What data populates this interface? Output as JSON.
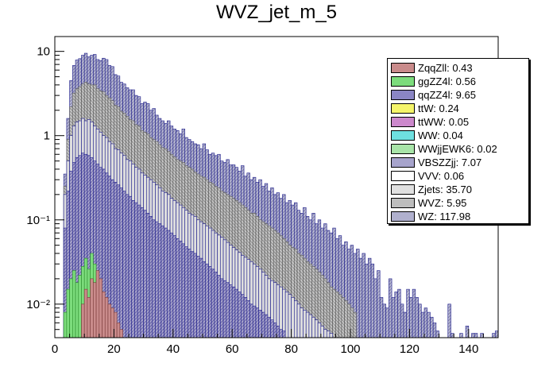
{
  "chart_data": {
    "type": "bar",
    "title": "WVZ_jet_m_5",
    "xlabel": "",
    "ylabel": "",
    "xlim": [
      0,
      150
    ],
    "ylim": [
      0.004,
      15
    ],
    "yscale": "log",
    "stacked": true,
    "bin_width": 1,
    "x_ticks": [
      "0",
      "20",
      "40",
      "60",
      "80",
      "100",
      "120",
      "140"
    ],
    "y_ticks": [
      {
        "value": 10,
        "label": "10"
      },
      {
        "value": 1,
        "label": "1"
      },
      {
        "value": 0.1,
        "label": "10⁻¹"
      },
      {
        "value": 0.01,
        "label": "10⁻²"
      }
    ],
    "legend_position": "top-right",
    "legend": [
      {
        "label": "ZqqZll: 0.43",
        "color": "#c98b8b"
      },
      {
        "label": "ggZZ4l: 0.56",
        "color": "#7cdc7c"
      },
      {
        "label": "qqZZ4l: 9.65",
        "color": "#8a85c4"
      },
      {
        "label": "ttW: 0.24",
        "color": "#f5f56a"
      },
      {
        "label": "ttWW: 0.05",
        "color": "#cc88cc"
      },
      {
        "label": "WW: 0.04",
        "color": "#6ee0e0"
      },
      {
        "label": "WWjjEWK6: 0.02",
        "color": "#a8e4a8"
      },
      {
        "label": "VBSZZjj: 7.07",
        "color": "#a7a4cc"
      },
      {
        "label": "VVV: 0.06",
        "color": "#ffffff"
      },
      {
        "label": "Zjets: 35.70",
        "color": "#e0e0e0"
      },
      {
        "label": "WVZ: 5.95",
        "color": "#bdbdbd"
      },
      {
        "label": "WZ: 117.98",
        "color": "#b0b0ce"
      }
    ],
    "series": [
      {
        "name": "WZ (stack total)",
        "x_start": 0,
        "values": [
          0,
          0,
          0,
          0.35,
          1.6,
          4.5,
          6.8,
          7.9,
          8.2,
          9.0,
          9.5,
          8.6,
          9.0,
          9.2,
          8.0,
          7.8,
          8.3,
          8.0,
          6.8,
          6.6,
          5.3,
          5.1,
          4.3,
          4.1,
          3.7,
          3.5,
          3.5,
          3.0,
          2.9,
          2.4,
          2.5,
          2.4,
          2.0,
          2.1,
          1.75,
          1.6,
          1.5,
          1.4,
          1.5,
          1.3,
          1.2,
          1.15,
          1.05,
          1.2,
          0.95,
          0.9,
          0.85,
          0.8,
          0.78,
          0.7,
          0.8,
          0.68,
          0.6,
          0.62,
          0.58,
          0.6,
          0.5,
          0.48,
          0.52,
          0.45,
          0.45,
          0.42,
          0.38,
          0.44,
          0.33,
          0.36,
          0.3,
          0.32,
          0.28,
          0.3,
          0.25,
          0.27,
          0.22,
          0.24,
          0.2,
          0.21,
          0.18,
          0.2,
          0.16,
          0.17,
          0.15,
          0.16,
          0.13,
          0.12,
          0.14,
          0.11,
          0.1,
          0.12,
          0.09,
          0.1,
          0.08,
          0.09,
          0.075,
          0.07,
          0.08,
          0.06,
          0.065,
          0.05,
          0.055,
          0.045,
          0.05,
          0.04,
          0.045,
          0.035,
          0.04,
          0.03,
          0.035,
          0.03,
          0.02,
          0.025,
          0.012,
          0.01,
          0.009,
          0.02,
          0.012,
          0.014,
          0.015,
          0.01,
          0.008,
          0.015,
          0.012,
          0.015,
          0.012,
          0.01,
          0.008,
          0.009,
          0.008,
          0.007,
          0.006,
          0.0048,
          0,
          0,
          0,
          0.01,
          0.0045,
          0,
          0,
          0.0045,
          0,
          0.0055,
          0,
          0.0045,
          0.0045,
          0,
          0.0045,
          0,
          0,
          0,
          0.0045,
          0.0048
        ]
      },
      {
        "name": "WVZ (cumulative)",
        "x_start": 0,
        "values": [
          0,
          0,
          0,
          0.25,
          0.9,
          2.2,
          3.2,
          3.6,
          3.8,
          4.1,
          4.3,
          4.1,
          4.0,
          4.0,
          3.6,
          3.4,
          3.3,
          3.0,
          2.8,
          2.6,
          2.3,
          2.2,
          1.95,
          1.85,
          1.7,
          1.55,
          1.5,
          1.35,
          1.3,
          1.15,
          1.1,
          1.05,
          0.95,
          0.9,
          0.85,
          0.78,
          0.72,
          0.7,
          0.65,
          0.6,
          0.56,
          0.52,
          0.5,
          0.48,
          0.44,
          0.42,
          0.4,
          0.37,
          0.35,
          0.33,
          0.32,
          0.3,
          0.28,
          0.27,
          0.25,
          0.24,
          0.22,
          0.21,
          0.2,
          0.19,
          0.18,
          0.17,
          0.16,
          0.15,
          0.14,
          0.13,
          0.12,
          0.12,
          0.11,
          0.1,
          0.095,
          0.09,
          0.085,
          0.08,
          0.075,
          0.07,
          0.065,
          0.06,
          0.055,
          0.05,
          0.047,
          0.045,
          0.04,
          0.038,
          0.035,
          0.032,
          0.03,
          0.028,
          0.026,
          0.024,
          0.022,
          0.02,
          0.018,
          0.016,
          0.015,
          0.014,
          0.013,
          0.012,
          0.011,
          0.01,
          0.009,
          0.008
        ]
      },
      {
        "name": "Zjets (cumulative)",
        "x_start": 0,
        "values": [
          0,
          0,
          0,
          0.2,
          0.5,
          1.0,
          1.3,
          1.45,
          1.5,
          1.6,
          1.5,
          1.55,
          1.45,
          1.3,
          1.2,
          1.1,
          1.0,
          0.95,
          0.85,
          0.8,
          0.7,
          0.68,
          0.62,
          0.58,
          0.52,
          0.5,
          0.46,
          0.42,
          0.4,
          0.36,
          0.34,
          0.32,
          0.3,
          0.28,
          0.26,
          0.24,
          0.22,
          0.21,
          0.2,
          0.18,
          0.17,
          0.16,
          0.15,
          0.14,
          0.13,
          0.12,
          0.115,
          0.11,
          0.1,
          0.095,
          0.09,
          0.085,
          0.08,
          0.075,
          0.07,
          0.066,
          0.062,
          0.058,
          0.054,
          0.05,
          0.047,
          0.044,
          0.041,
          0.038,
          0.036,
          0.034,
          0.032,
          0.03,
          0.028,
          0.026,
          0.024,
          0.022,
          0.02,
          0.019,
          0.018,
          0.017,
          0.016,
          0.015,
          0.014,
          0.013,
          0.012,
          0.011,
          0.01,
          0.009,
          0.0085,
          0.008,
          0.0075,
          0.007,
          0.0065,
          0.006,
          0.0055,
          0.005,
          0.0048,
          0.0045
        ]
      },
      {
        "name": "qqZZ4l (cumulative)",
        "x_start": 0,
        "values": [
          0,
          0,
          0,
          0.08,
          0.22,
          0.38,
          0.48,
          0.55,
          0.58,
          0.62,
          0.6,
          0.58,
          0.55,
          0.5,
          0.46,
          0.42,
          0.4,
          0.36,
          0.33,
          0.3,
          0.28,
          0.26,
          0.24,
          0.22,
          0.2,
          0.19,
          0.17,
          0.16,
          0.15,
          0.14,
          0.13,
          0.12,
          0.11,
          0.1,
          0.095,
          0.09,
          0.085,
          0.08,
          0.075,
          0.07,
          0.065,
          0.06,
          0.056,
          0.052,
          0.048,
          0.045,
          0.042,
          0.04,
          0.037,
          0.035,
          0.032,
          0.03,
          0.028,
          0.026,
          0.024,
          0.022,
          0.02,
          0.019,
          0.018,
          0.017,
          0.016,
          0.015,
          0.014,
          0.013,
          0.012,
          0.011,
          0.01,
          0.0095,
          0.009,
          0.0085,
          0.008,
          0.0075,
          0.007,
          0.0065,
          0.006,
          0.0055,
          0.005,
          0.0048
        ]
      },
      {
        "name": "ggZZ4l (cumulative)",
        "x_start": 0,
        "values": [
          0,
          0,
          0,
          0.008,
          0.015,
          0.02,
          0.025,
          0.018,
          0.022,
          0.028,
          0.035,
          0.026,
          0.04,
          0.03,
          0.02,
          0.015,
          0.012,
          0.01,
          0.008,
          0.0065,
          0.0055,
          0.005
        ]
      },
      {
        "name": "ZqqZll",
        "x_start": 0,
        "values": [
          0,
          0,
          0,
          0,
          0,
          0,
          0,
          0,
          0,
          0.01,
          0.015,
          0.012,
          0.02,
          0.018,
          0.025,
          0.02,
          0.014,
          0.012,
          0.01,
          0.009,
          0.008,
          0.006,
          0.005
        ]
      }
    ]
  }
}
